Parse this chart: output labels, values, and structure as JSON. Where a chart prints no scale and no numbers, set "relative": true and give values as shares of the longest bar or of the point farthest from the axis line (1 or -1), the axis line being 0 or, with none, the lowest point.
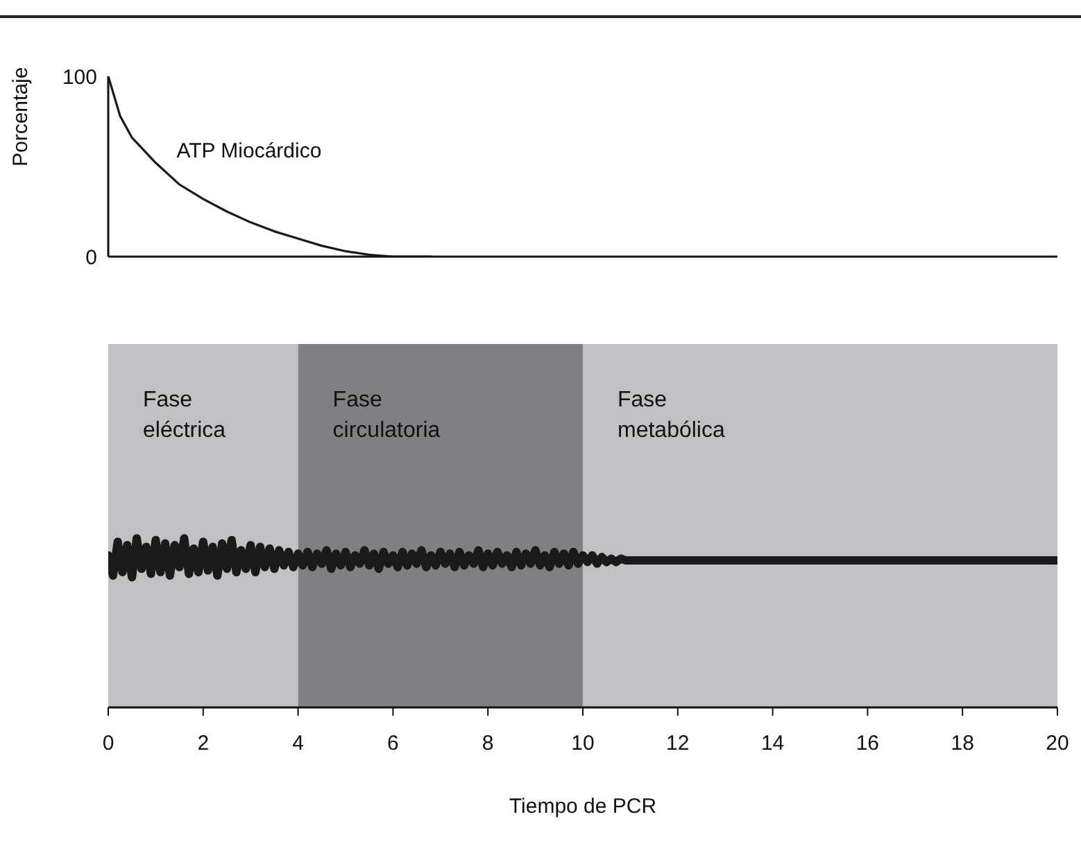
{
  "chart_data": [
    {
      "type": "line",
      "ylabel": "Porcentaje",
      "xlim": [
        0,
        20
      ],
      "ylim": [
        0,
        100
      ],
      "yticks": [
        0,
        100
      ],
      "tick_labels": "y",
      "marker": "none",
      "series": [
        {
          "name": "ATP Miocárdico",
          "color": "#1a1a1a",
          "x": [
            0,
            0.25,
            0.5,
            1,
            1.5,
            2,
            2.5,
            3,
            3.5,
            4,
            4.5,
            5,
            5.5,
            6,
            6.8
          ],
          "values": [
            100,
            78,
            66,
            52,
            40,
            32,
            25,
            19,
            14,
            10,
            6,
            3,
            1,
            0,
            0
          ]
        }
      ]
    },
    {
      "type": "line",
      "relative": true,
      "xlabel": "Tiempo de PCR",
      "xlim": [
        0,
        20
      ],
      "xticks": [
        0,
        2,
        4,
        6,
        8,
        10,
        12,
        14,
        16,
        18,
        20
      ],
      "tick_labels": "x",
      "marker": "none",
      "bands": [
        {
          "axis": "x",
          "from": 0,
          "to": 4,
          "label": "Fase eléctrica",
          "color": "#c1c1c3"
        },
        {
          "axis": "x",
          "from": 4,
          "to": 10,
          "label": "Fase circulatoria",
          "color": "#808083"
        },
        {
          "axis": "x",
          "from": 10,
          "to": 20,
          "label": "Fase metabólica",
          "color": "#c1c1c3"
        }
      ],
      "series": [
        {
          "color": "#1a1a1a",
          "x": [
            0,
            0.1,
            0.2,
            0.3,
            0.4,
            0.5,
            0.6,
            0.7,
            0.8,
            0.9,
            1,
            1.1,
            1.2,
            1.3,
            1.4,
            1.5,
            1.6,
            1.7,
            1.8,
            1.9,
            2,
            2.1,
            2.2,
            2.3,
            2.4,
            2.5,
            2.6,
            2.7,
            2.8,
            2.9,
            3,
            3.1,
            3.2,
            3.3,
            3.4,
            3.5,
            3.6,
            3.7,
            3.8,
            3.9,
            4,
            4.1,
            4.2,
            4.3,
            4.4,
            4.5,
            4.6,
            4.7,
            4.8,
            4.9,
            5,
            5.1,
            5.2,
            5.3,
            5.4,
            5.5,
            5.6,
            5.7,
            5.8,
            5.9,
            6,
            6.1,
            6.2,
            6.3,
            6.4,
            6.5,
            6.6,
            6.7,
            6.8,
            6.9,
            7,
            7.1,
            7.2,
            7.3,
            7.4,
            7.5,
            7.6,
            7.7,
            7.8,
            7.9,
            8,
            8.1,
            8.2,
            8.3,
            8.4,
            8.5,
            8.6,
            8.7,
            8.8,
            8.9,
            9,
            9.1,
            9.2,
            9.3,
            9.4,
            9.5,
            9.6,
            9.7,
            9.8,
            9.9,
            10,
            10.1,
            10.2,
            10.3,
            10.4,
            10.5,
            10.6,
            10.7,
            10.8,
            10.9,
            11,
            20
          ],
          "values": [
            0.9,
            0.78,
            0.98,
            0.8,
            0.96,
            0.77,
            1.0,
            0.82,
            0.95,
            0.79,
            0.99,
            0.8,
            0.97,
            0.78,
            0.96,
            0.83,
            1.0,
            0.79,
            0.94,
            0.8,
            0.98,
            0.81,
            0.95,
            0.78,
            0.97,
            0.82,
            0.99,
            0.8,
            0.93,
            0.82,
            0.96,
            0.8,
            0.95,
            0.83,
            0.94,
            0.82,
            0.93,
            0.84,
            0.92,
            0.83,
            0.91,
            0.84,
            0.92,
            0.83,
            0.91,
            0.85,
            0.93,
            0.82,
            0.91,
            0.84,
            0.92,
            0.83,
            0.9,
            0.85,
            0.93,
            0.84,
            0.91,
            0.82,
            0.92,
            0.85,
            0.9,
            0.83,
            0.92,
            0.84,
            0.91,
            0.85,
            0.93,
            0.83,
            0.9,
            0.84,
            0.92,
            0.85,
            0.91,
            0.83,
            0.92,
            0.84,
            0.9,
            0.85,
            0.93,
            0.83,
            0.91,
            0.84,
            0.92,
            0.85,
            0.9,
            0.83,
            0.92,
            0.84,
            0.91,
            0.85,
            0.93,
            0.84,
            0.9,
            0.83,
            0.92,
            0.85,
            0.91,
            0.84,
            0.92,
            0.85,
            0.9,
            0.86,
            0.9,
            0.85,
            0.89,
            0.86,
            0.88,
            0.86,
            0.88,
            0.87,
            0.87,
            0.87
          ]
        }
      ]
    }
  ]
}
